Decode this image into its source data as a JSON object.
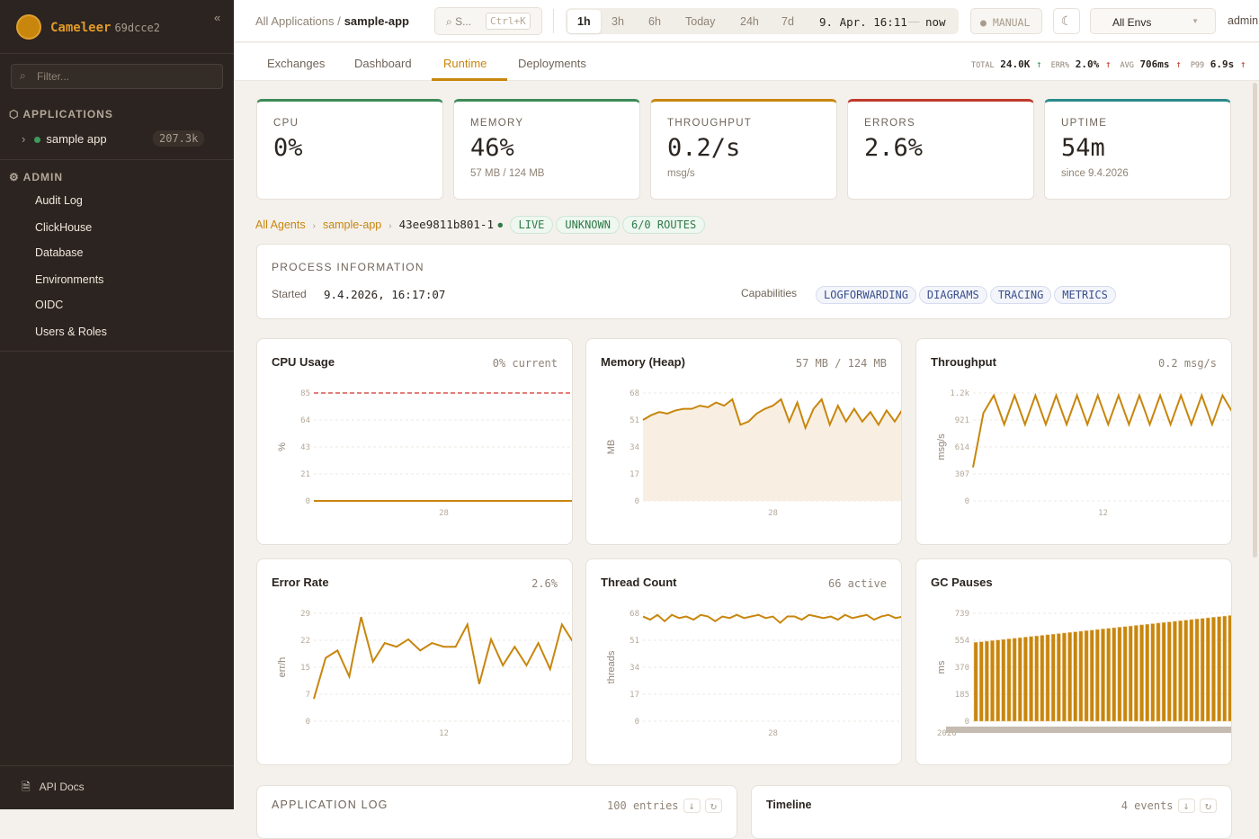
{
  "sidebar": {
    "brand": "Cameleer",
    "version": "69dcce2",
    "collapse": "«",
    "filter_placeholder": "Filter...",
    "applications_label": "APPLICATIONS",
    "app": {
      "name": "sample app",
      "count": "207.3k",
      "status_color": "#3d9b5a"
    },
    "admin_label": "ADMIN",
    "admin_items": [
      "Audit Log",
      "ClickHouse",
      "Database",
      "Environments",
      "OIDC",
      "Users & Roles"
    ],
    "api_docs": "API Docs"
  },
  "topbar": {
    "breadcrumb_root": "All Applications",
    "breadcrumb_sep": "/",
    "breadcrumb_current": "sample-app",
    "search_placeholder": "S...",
    "search_kbd": "Ctrl+K",
    "ranges": [
      "1h",
      "3h",
      "6h",
      "Today",
      "24h",
      "7d"
    ],
    "active_range": "1h",
    "range_from": "9. Apr. 16:11",
    "range_dash": "—",
    "range_to": "now",
    "manual": "● MANUAL",
    "theme_icon": "☾",
    "env": "All Envs",
    "user": "admin"
  },
  "tabs": [
    "Exchanges",
    "Dashboard",
    "Runtime",
    "Deployments"
  ],
  "active_tab": "Runtime",
  "stats": [
    {
      "k": "TOTAL",
      "v": "24.0K",
      "dir": "↑",
      "color": "green"
    },
    {
      "k": "ERR%",
      "v": "2.0%",
      "dir": "↑",
      "color": "red"
    },
    {
      "k": "AVG",
      "v": "706ms",
      "dir": "↑",
      "color": "red"
    },
    {
      "k": "P99",
      "v": "6.9s",
      "dir": "↑",
      "color": "red"
    }
  ],
  "kpis": [
    {
      "label": "CPU",
      "value": "0%",
      "sub": "",
      "color": "#3d8b5a"
    },
    {
      "label": "MEMORY",
      "value": "46%",
      "sub": "57 MB / 124 MB",
      "color": "#3d8b5a"
    },
    {
      "label": "THROUGHPUT",
      "value": "0.2/s",
      "sub": "msg/s",
      "color": "#c8860d"
    },
    {
      "label": "ERRORS",
      "value": "2.6%",
      "sub": "",
      "color": "#c0392b"
    },
    {
      "label": "UPTIME",
      "value": "54m",
      "sub": "since 9.4.2026",
      "color": "#2a8a8a"
    }
  ],
  "agent": {
    "all": "All Agents",
    "app": "sample-app",
    "id": "43ee9811b801-1",
    "badges": [
      "LIVE",
      "UNKNOWN",
      "6/0 ROUTES"
    ]
  },
  "process": {
    "title": "PROCESS INFORMATION",
    "started_label": "Started",
    "started": "9.4.2026, 16:17:07",
    "capabilities_label": "Capabilities",
    "capabilities": [
      "LOGFORWARDING",
      "DIAGRAMS",
      "TRACING",
      "METRICS"
    ]
  },
  "chart_data": [
    {
      "type": "line",
      "title": "CPU Usage",
      "value": "0% current",
      "ylabel": "%",
      "yticks": [
        "0",
        "21",
        "43",
        "64",
        "85"
      ],
      "ylim": [
        0,
        85
      ],
      "xticks": [
        "28"
      ],
      "threshold": 85,
      "threshold_color": "#d9534f",
      "values": [
        0,
        0,
        0,
        0,
        0,
        0,
        0,
        0,
        0,
        0,
        0,
        0,
        0,
        0,
        0,
        0,
        0,
        0,
        0,
        0
      ]
    },
    {
      "type": "area",
      "title": "Memory (Heap)",
      "value": "57 MB / 124 MB",
      "ylabel": "MB",
      "yticks": [
        "0",
        "17",
        "34",
        "51",
        "68"
      ],
      "ylim": [
        0,
        68
      ],
      "xticks": [
        "28"
      ],
      "values": [
        51,
        54,
        56,
        55,
        57,
        58,
        58,
        60,
        59,
        62,
        60,
        64,
        48,
        50,
        55,
        58,
        60,
        64,
        50,
        62,
        46,
        58,
        64,
        48,
        60,
        50,
        58,
        50,
        56,
        48,
        57,
        50,
        58
      ]
    },
    {
      "type": "line",
      "title": "Throughput",
      "value": "0.2 msg/s",
      "ylabel": "msg/s",
      "yticks": [
        "0",
        "307",
        "614",
        "921",
        "1.2k"
      ],
      "ylim": [
        0,
        1228
      ],
      "xticks": [
        "12"
      ],
      "values": [
        380,
        1000,
        1200,
        870,
        1200,
        870,
        1200,
        870,
        1200,
        870,
        1200,
        870,
        1200,
        870,
        1200,
        870,
        1200,
        870,
        1200,
        870,
        1200,
        870,
        1200,
        870,
        1200,
        1000
      ]
    },
    {
      "type": "line",
      "title": "Error Rate",
      "value": "2.6%",
      "ylabel": "err/h",
      "yticks": [
        "0",
        "7",
        "15",
        "22",
        "29"
      ],
      "ylim": [
        0,
        29
      ],
      "xticks": [
        "12"
      ],
      "values": [
        6,
        17,
        19,
        12,
        28,
        16,
        21,
        20,
        22,
        19,
        21,
        20,
        20,
        26,
        10,
        22,
        15,
        20,
        15,
        21,
        14,
        26,
        21
      ]
    },
    {
      "type": "line",
      "title": "Thread Count",
      "value": "66 active",
      "ylabel": "threads",
      "yticks": [
        "0",
        "17",
        "34",
        "51",
        "68"
      ],
      "ylim": [
        0,
        68
      ],
      "xticks": [
        "28"
      ],
      "values": [
        66,
        64,
        67,
        63,
        67,
        65,
        66,
        64,
        67,
        66,
        63,
        66,
        65,
        67,
        65,
        66,
        67,
        65,
        66,
        62,
        66,
        66,
        64,
        67,
        66,
        65,
        66,
        64,
        67,
        65,
        66,
        67,
        64,
        66,
        67,
        65,
        66
      ]
    },
    {
      "type": "bar",
      "title": "GC Pauses",
      "value": "",
      "ylabel": "ms",
      "yticks": [
        "0",
        "185",
        "370",
        "554",
        "739"
      ],
      "ylim": [
        0,
        739
      ],
      "xticks": [
        "2026"
      ],
      "values": [
        540,
        544,
        548,
        552,
        556,
        560,
        564,
        568,
        572,
        576,
        580,
        584,
        588,
        592,
        596,
        600,
        604,
        608,
        612,
        616,
        620,
        624,
        628,
        632,
        636,
        640,
        644,
        648,
        652,
        656,
        660,
        664,
        668,
        672,
        676,
        680,
        684,
        688,
        692,
        696,
        700,
        704,
        708,
        712,
        716,
        720,
        724
      ]
    }
  ],
  "bottom": {
    "log_title": "APPLICATION LOG",
    "log_count": "100 entries",
    "timeline_title": "Timeline",
    "timeline_count": "4 events"
  }
}
